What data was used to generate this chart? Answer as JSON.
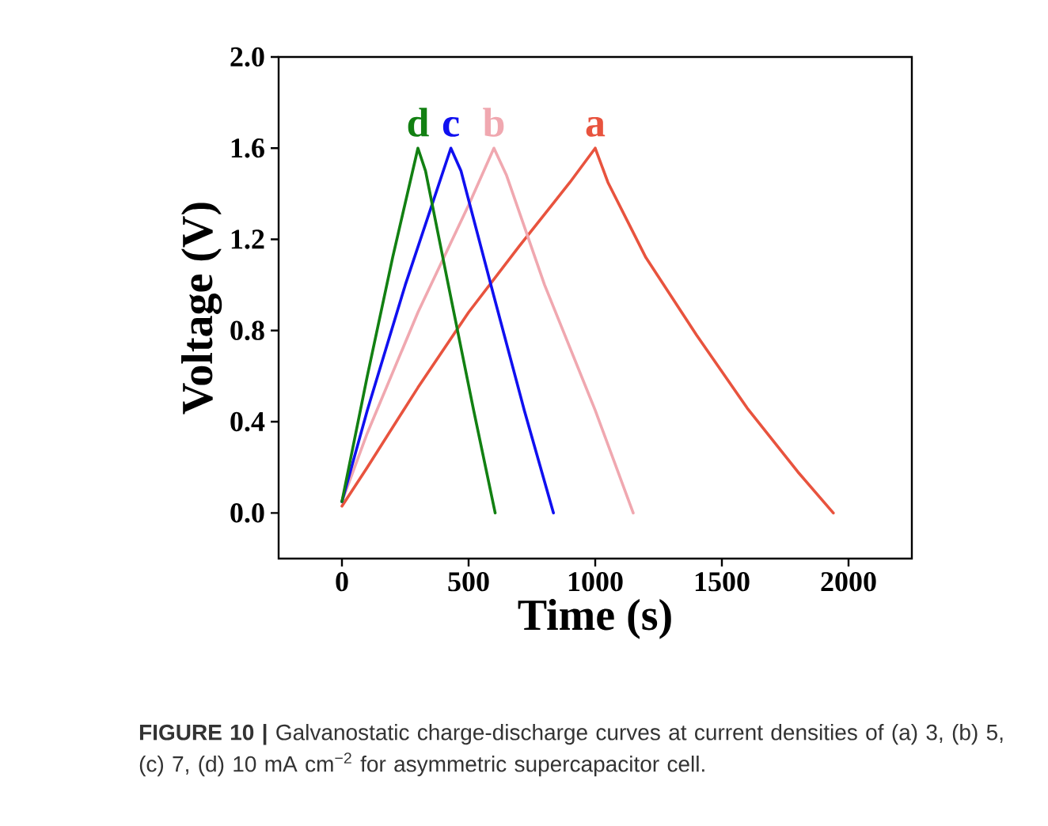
{
  "chart_data": {
    "type": "line",
    "xlabel": "Time (s)",
    "ylabel": "Voltage (V)",
    "annotations": [
      "**FIGURE 10 |** Galvanostatic charge-discharge curves at current densities of (a) 3, (b) 5, (c) 7, (d) 10 mA cm$^{−2}$ for asymmetric supercapacitor cell."
    ],
    "xlim": [
      -250,
      2250
    ],
    "xticks": [
      0,
      500,
      1000,
      1500,
      2000
    ],
    "ylim": [
      -0.2,
      2.0
    ],
    "yticks": [
      {
        "value": 0,
        "label": "0.0"
      },
      {
        "value": 0.4,
        "label": "0.4"
      },
      {
        "value": 0.8,
        "label": "0.8"
      },
      {
        "value": 1.2,
        "label": "1.2"
      },
      {
        "value": 1.6,
        "label": "1.6"
      },
      {
        "value": 2.0,
        "label": "2.0"
      }
    ],
    "grid": false,
    "marker": "none",
    "line_style": "solid",
    "series": [
      {
        "name": "a",
        "color": "#e8533e",
        "x": [
          0,
          100,
          300,
          500,
          700,
          900,
          1000,
          1050,
          1200,
          1400,
          1600,
          1800,
          1940
        ],
        "values": [
          0.03,
          0.2,
          0.55,
          0.88,
          1.17,
          1.45,
          1.6,
          1.45,
          1.12,
          0.78,
          0.46,
          0.18,
          0
        ]
      },
      {
        "name": "b",
        "color": "#f0a8b0",
        "x": [
          0,
          100,
          300,
          500,
          600,
          650,
          800,
          1000,
          1150
        ],
        "values": [
          0.05,
          0.35,
          0.88,
          1.35,
          1.6,
          1.48,
          1.0,
          0.45,
          0
        ]
      },
      {
        "name": "c",
        "color": "#1010f0",
        "x": [
          0,
          100,
          250,
          430,
          470,
          600,
          720,
          835
        ],
        "values": [
          0.05,
          0.45,
          1.0,
          1.6,
          1.5,
          0.95,
          0.45,
          0
        ]
      },
      {
        "name": "d",
        "color": "#128012",
        "x": [
          0,
          100,
          200,
          300,
          330,
          420,
          520,
          605
        ],
        "values": [
          0.05,
          0.6,
          1.12,
          1.6,
          1.5,
          1.0,
          0.45,
          0
        ]
      }
    ]
  }
}
